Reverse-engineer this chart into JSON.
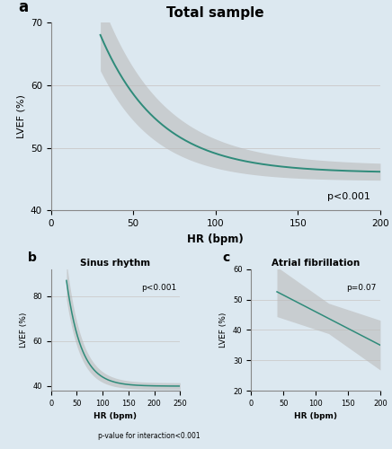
{
  "background_color": "#dce8f0",
  "line_color": "#2e8b7a",
  "ci_color": "#bbbbbb",
  "ci_alpha": 0.6,
  "title_a": "Total sample",
  "title_b": "Sinus rhythm",
  "title_c": "Atrial fibrillation",
  "label_a": "a",
  "label_b": "b",
  "label_c": "c",
  "xlabel": "HR (bpm)",
  "ylabel": "LVEF (%)",
  "pval_a": "p<0.001",
  "pval_b": "p<0.001",
  "pval_c": "p=0.07",
  "interaction_text": "p-value for interaction<0.001",
  "xlim_a": [
    0,
    200
  ],
  "ylim_a": [
    40,
    70
  ],
  "yticks_a": [
    40,
    50,
    60,
    70
  ],
  "xticks_a": [
    0,
    50,
    100,
    150,
    200
  ],
  "xlim_b": [
    0,
    250
  ],
  "ylim_b": [
    38,
    92
  ],
  "yticks_b": [
    40,
    60,
    80
  ],
  "xticks_b": [
    0,
    50,
    100,
    150,
    200,
    250
  ],
  "xlim_c": [
    0,
    200
  ],
  "ylim_c": [
    20,
    60
  ],
  "yticks_c": [
    20,
    30,
    40,
    50,
    60
  ],
  "xticks_c": [
    0,
    50,
    100,
    150,
    200
  ]
}
